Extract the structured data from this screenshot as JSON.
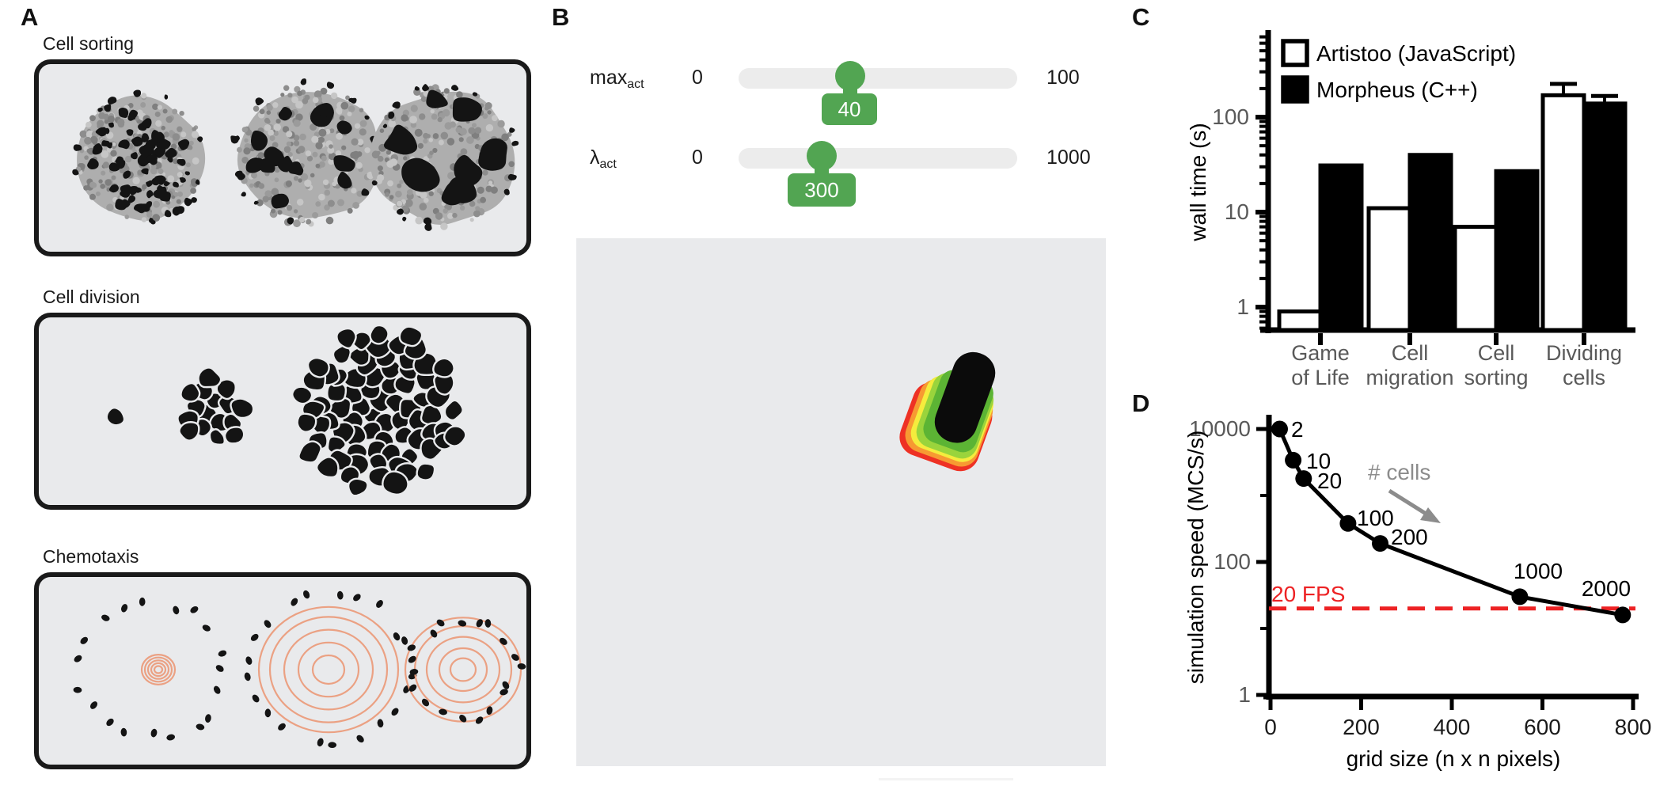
{
  "panels": {
    "a": {
      "letter": "A",
      "sections": [
        {
          "title": "Cell sorting"
        },
        {
          "title": "Cell division"
        },
        {
          "title": "Chemotaxis"
        }
      ],
      "box_fill": "#e9eaec",
      "box_border": "#1a1a1a",
      "contour_orange": "#eba183",
      "cell_black": "#141414",
      "speckle_grays": [
        "#8d8d8d",
        "#9b9b9b",
        "#c6c6c6",
        "#7f7f7f"
      ]
    },
    "b": {
      "letter": "B",
      "sliders": [
        {
          "name": "max",
          "subscript": "act",
          "min": "0",
          "max": "100",
          "value": "40"
        },
        {
          "name": "λ",
          "subscript": "act",
          "min": "0",
          "max": "1000",
          "value": "300"
        }
      ],
      "accent_green": "#52a552",
      "track_gray": "#ececec",
      "canvas_fill": "#e9eaec",
      "cell_colors": {
        "body": "#0b0b0b",
        "act_bands": [
          "#ee3124",
          "#f79a32",
          "#f5ec3d",
          "#9ad43c",
          "#5cb434"
        ]
      }
    },
    "c": {
      "letter": "C"
    },
    "d": {
      "letter": "D"
    }
  },
  "chart_data": [
    {
      "panel": "C",
      "type": "bar",
      "yscale": "log",
      "ylabel": "wall time (s)",
      "yticks": [
        1,
        10,
        100
      ],
      "ylim": [
        0.57,
        790
      ],
      "categories": [
        [
          "Game",
          "of Life"
        ],
        [
          "Cell",
          "migration"
        ],
        [
          "Cell",
          "sorting"
        ],
        [
          "Dividing",
          "cells"
        ]
      ],
      "series": [
        {
          "name": "Artistoo (JavaScript)",
          "fill": "#ffffff",
          "values": [
            0.9,
            11,
            7,
            170
          ],
          "errors_plus": [
            null,
            null,
            null,
            54
          ]
        },
        {
          "name": "Morpheus (C++)",
          "fill": "#000000",
          "values": [
            31,
            40,
            27,
            139
          ],
          "errors_plus": [
            null,
            null,
            null,
            28
          ]
        }
      ],
      "legend_position": "top-left",
      "axis_color": "#000000",
      "tick_label_color": "#595959"
    },
    {
      "panel": "D",
      "type": "line",
      "yscale": "log",
      "xlabel": "grid size (n x n pixels)",
      "ylabel": "simulation speed (MCS/s)",
      "xticks": [
        0,
        200,
        400,
        600,
        800
      ],
      "yticks": [
        1,
        100,
        10000
      ],
      "xlim": [
        0,
        800
      ],
      "ylim": [
        1,
        12000
      ],
      "x": [
        20,
        50,
        73,
        171,
        242,
        550,
        777
      ],
      "y": [
        10000,
        3400,
        1800,
        380,
        190,
        30,
        16
      ],
      "point_labels": [
        "2",
        "10",
        "20",
        "100",
        "200",
        "1000",
        "2000"
      ],
      "hline": {
        "value": 20,
        "label": "20 FPS",
        "color": "#ed2224",
        "style": "dashed"
      },
      "annotation": {
        "text": "# cells",
        "color": "#8c8c8c",
        "arrow": true
      },
      "axis_color": "#000000",
      "tick_label_color": "#595959",
      "xtick_label_color": "#1a1a1a"
    }
  ]
}
